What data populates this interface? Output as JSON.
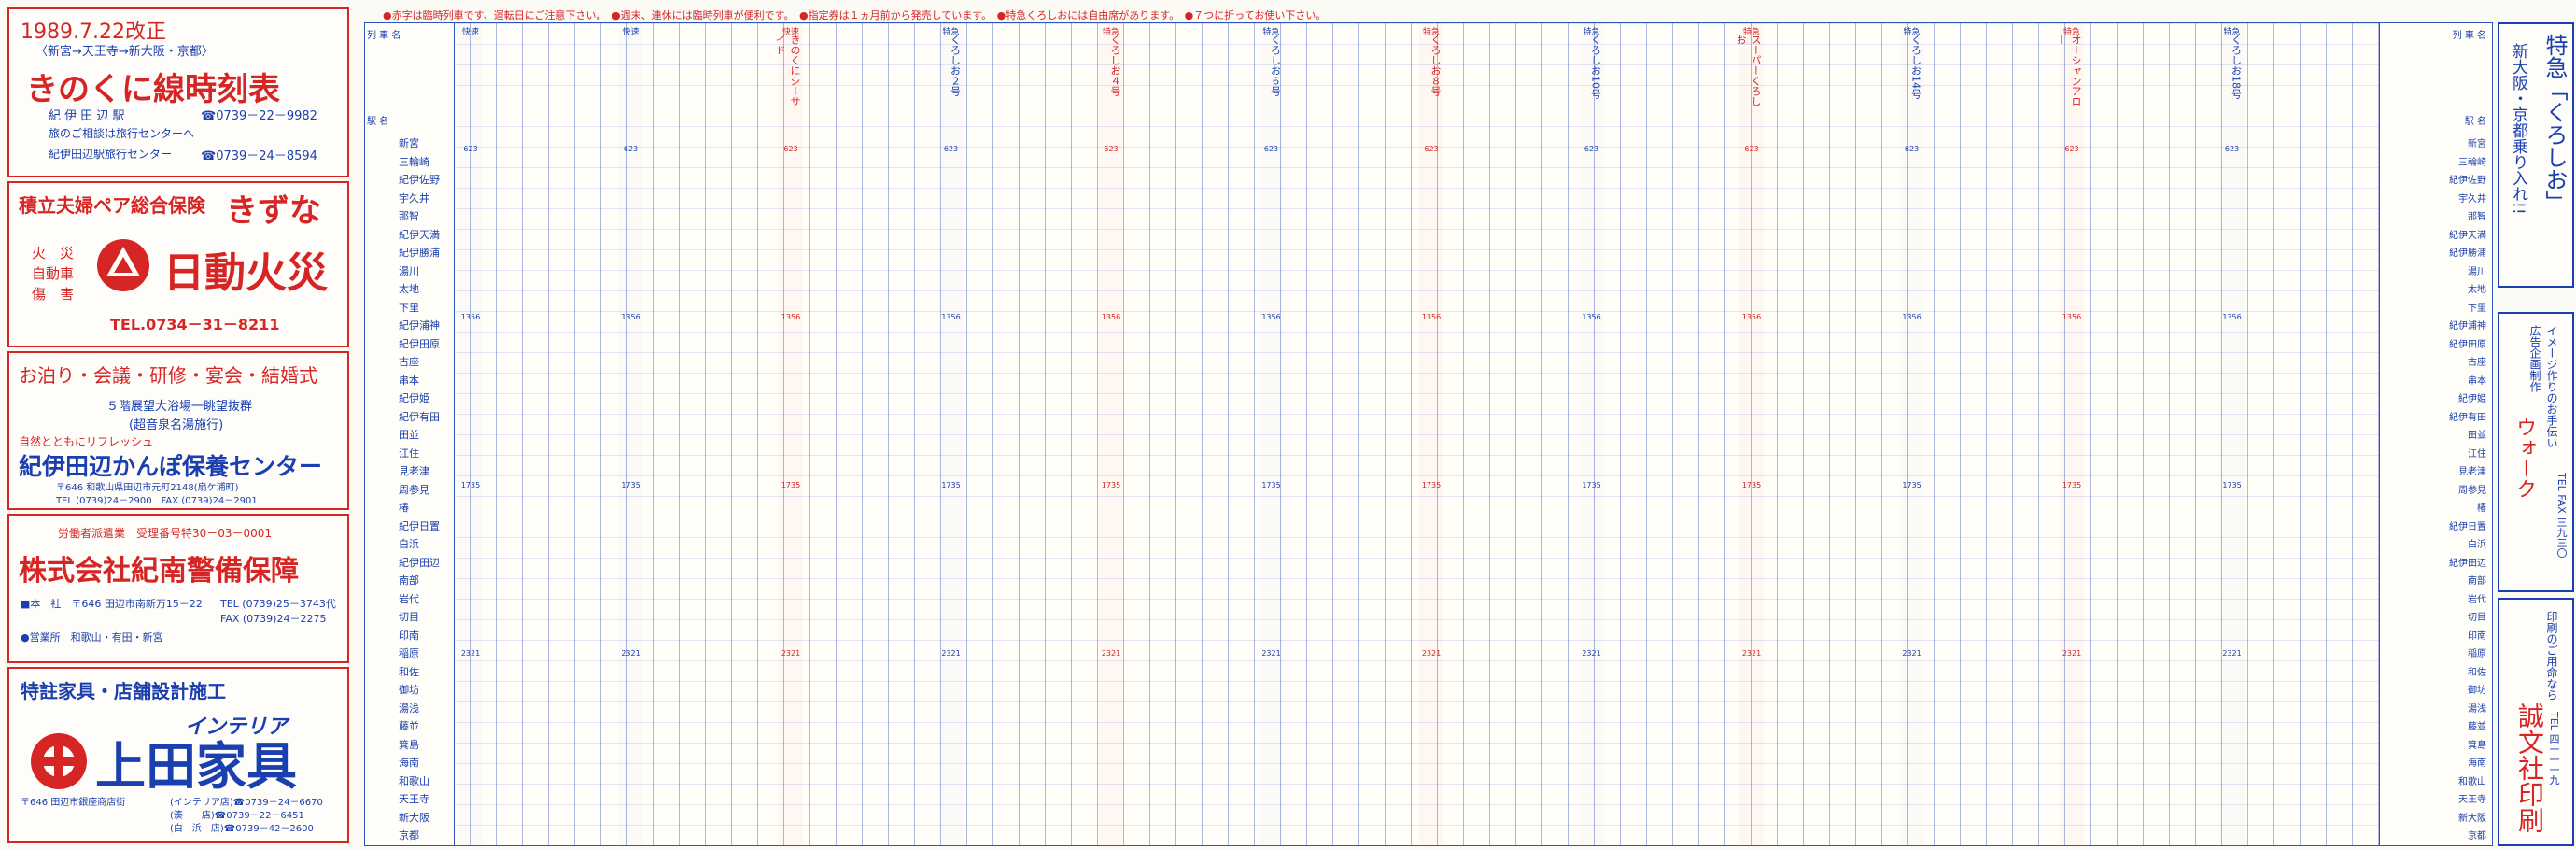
{
  "notes": {
    "line": "●赤字は臨時列車です、運転日にご注意下さい。　●週末、連休には臨時列車が便利です。　●指定券は１ヵ月前から発売しています。　●特急くろしおには自由席があります。　●７つに折ってお使い下さい。"
  },
  "ad1": {
    "date": "1989.7.22改正",
    "route": "〈新宮→天王寺→新大阪・京都〉",
    "title": "きのくに線時刻表",
    "station": "紀 伊 田 辺 駅",
    "station_tel": "☎0739－22－9982",
    "consult": "旅のご相談は旅行センターへ",
    "center": "紀伊田辺駅旅行センター",
    "center_tel": "☎0739－24－8594"
  },
  "ad2": {
    "lead": "積立夫婦ペア総合保険",
    "brand": "きずな",
    "hazard1": "火　災",
    "hazard2": "自動車",
    "hazard3": "傷　害",
    "company": "日動火災",
    "tel": "TEL.0734－31－8211"
  },
  "ad3": {
    "line1": "お泊り・会議・研修・宴会・結婚式",
    "line2": "５階展望大浴場一眺望抜群",
    "line3": "(超音泉名湯施行)",
    "line4": "自然とともにリフレッシュ",
    "name": "紀伊田辺かんぽ保養センター",
    "addr": "〒646 和歌山県田辺市元町2148(扇ケ浦町)",
    "tel": "TEL (0739)24－2900　FAX (0739)24－2901"
  },
  "ad4": {
    "line1": "労働者派遣業　受理番号特30－03－0001",
    "name": "株式会社紀南警備保障",
    "hq": "■本　社　〒646 田辺市南新万15－22",
    "hq_tel": "TEL (0739)25－3743代",
    "hq_fax": "FAX (0739)24－2275",
    "branch": "●営業所　和歌山・有田・新宮"
  },
  "ad5": {
    "line1": "特註家具・店舗設計施工",
    "brand_sub": "インテリア",
    "brand": "上田家具",
    "addr": "〒646 田辺市銀座商店街",
    "tel1": "(インテリア店)☎0739－24－6670",
    "tel2": "(湊　　店)☎0739－22－6451",
    "tel3": "(白　浜　店)☎0739－42－2600"
  },
  "table": {
    "header": "列 車 名",
    "header2": "駅 名",
    "stations": [
      "新宮",
      "三輪崎",
      "紀伊佐野",
      "宇久井",
      "那智",
      "紀伊天満",
      "紀伊勝浦",
      "湯川",
      "太地",
      "下里",
      "紀伊浦神",
      "紀伊田原",
      "古座",
      "串本",
      "紀伊姫",
      "紀伊有田",
      "田並",
      "江住",
      "見老津",
      "周参見",
      "椿",
      "紀伊日置",
      "白浜",
      "紀伊田辺",
      "南部",
      "岩代",
      "切目",
      "印南",
      "稲原",
      "和佐",
      "御坊",
      "湯浅",
      "藤並",
      "箕島",
      "海南",
      "和歌山",
      "天王寺",
      "新大阪",
      "京都"
    ],
    "right_stations": [
      "新宮",
      "三輪崎",
      "紀伊佐野",
      "宇久井",
      "那智",
      "紀伊天満",
      "紀伊勝浦",
      "湯川",
      "太地",
      "下里",
      "紀伊浦神",
      "紀伊田原",
      "古座",
      "串本",
      "紀伊姫",
      "紀伊有田",
      "田並",
      "江住",
      "見老津",
      "周参見",
      "椿",
      "紀伊日置",
      "白浜",
      "紀伊田辺",
      "南部",
      "岩代",
      "切目",
      "印南",
      "稲原",
      "和佐",
      "御坊",
      "湯浅",
      "藤並",
      "箕島",
      "海南",
      "和歌山",
      "天王寺",
      "新大阪",
      "京都"
    ],
    "trains": [
      {
        "tag": "快速",
        "color": "blue",
        "name": "",
        "times": [
          "",
          "",
          "",
          ""
        ]
      },
      {
        "tag": "快速",
        "color": "blue",
        "name": "",
        "times": [
          "",
          "",
          "",
          ""
        ]
      },
      {
        "tag": "快速",
        "color": "red",
        "name": "きのくにシーサイド",
        "times": [
          "",
          "",
          "",
          ""
        ]
      },
      {
        "tag": "特急",
        "color": "blue",
        "name": "くろしお２号",
        "times": [
          "",
          "",
          "",
          ""
        ]
      },
      {
        "tag": "特急",
        "color": "red",
        "name": "くろしお４号",
        "times": [
          "",
          "",
          "",
          ""
        ]
      },
      {
        "tag": "特急",
        "color": "blue",
        "name": "くろしお６号",
        "times": [
          "",
          "",
          "",
          ""
        ]
      },
      {
        "tag": "特急",
        "color": "red",
        "name": "くろしお８号",
        "times": [
          "",
          "",
          "",
          ""
        ]
      },
      {
        "tag": "特急",
        "color": "blue",
        "name": "くろしお10号",
        "times": [
          "",
          "",
          "",
          ""
        ]
      },
      {
        "tag": "特急",
        "color": "red",
        "name": "スーパーくろしお",
        "times": [
          "",
          "",
          "",
          ""
        ]
      },
      {
        "tag": "特急",
        "color": "blue",
        "name": "くろしお14号",
        "times": [
          "",
          "",
          "",
          ""
        ]
      },
      {
        "tag": "特急",
        "color": "red",
        "name": "オーシャンアロー",
        "times": [
          "",
          "",
          "",
          ""
        ]
      },
      {
        "tag": "特急",
        "color": "blue",
        "name": "くろしお18号",
        "times": [
          "",
          "",
          "",
          ""
        ]
      }
    ],
    "train_time_labels": [
      "623",
      "1356",
      "1735",
      "2321"
    ]
  },
  "side_ad": {
    "top_blue": "特急「くろしお」",
    "top_blue2": "新大阪・京都乗り入れ!!",
    "mid1": "イメージ作りのお手伝い",
    "mid2": "広告企画制作",
    "brand": "ウォーク",
    "tel": "TEL FAX 三九三〇",
    "bottom1": "印刷のご用命なら",
    "bottom2": "誠文社印刷",
    "bottom3": "TEL 四一一一九"
  }
}
